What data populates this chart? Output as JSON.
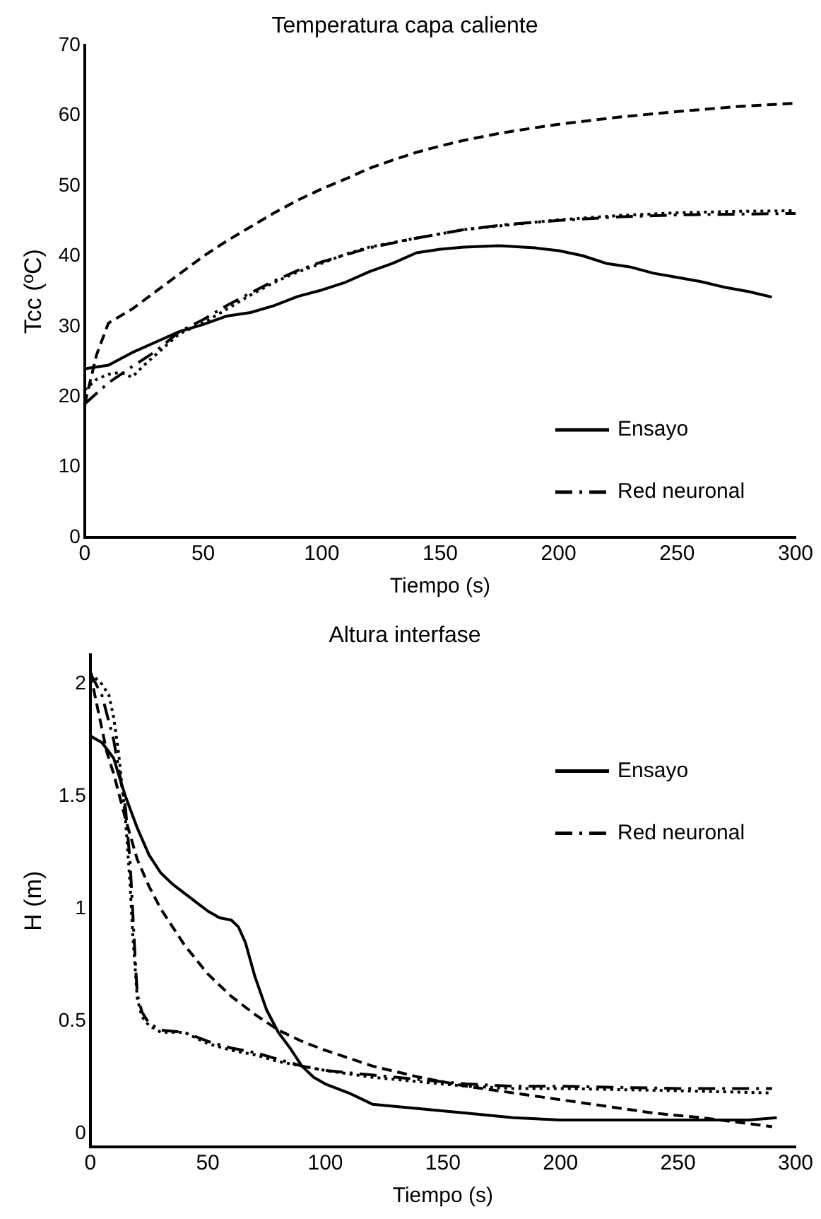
{
  "chart_data": [
    {
      "type": "line",
      "title": "Temperatura capa caliente",
      "xlabel": "Tiempo (s)",
      "ylabel": "Tcc (ºC)",
      "xlim": [
        0,
        300
      ],
      "xticks": [
        0,
        50,
        100,
        150,
        200,
        250,
        300
      ],
      "ylim": [
        0,
        70
      ],
      "yticks": [
        0,
        10,
        20,
        30,
        40,
        50,
        60,
        70
      ],
      "grid": false,
      "legend": "bottom right",
      "marker": "none",
      "series": [
        {
          "name": "Ensayo",
          "color": "#000000",
          "line_style": "solid",
          "x": [
            0,
            10,
            20,
            30,
            40,
            50,
            60,
            70,
            80,
            90,
            100,
            110,
            120,
            130,
            140,
            150,
            160,
            175,
            190,
            200,
            210,
            220,
            230,
            240,
            250,
            260,
            270,
            280,
            290
          ],
          "values": [
            24,
            24.5,
            26.3,
            27.8,
            29.3,
            30.3,
            31.5,
            32,
            33,
            34.3,
            35.2,
            36.3,
            37.8,
            39,
            40.5,
            41,
            41.3,
            41.5,
            41.2,
            40.8,
            40.1,
            39,
            38.5,
            37.6,
            37,
            36.4,
            35.6,
            35,
            34.2
          ]
        },
        {
          "color": "#000000",
          "line_style": "dashed",
          "x": [
            0,
            5,
            10,
            20,
            30,
            40,
            50,
            60,
            70,
            80,
            90,
            100,
            110,
            120,
            130,
            140,
            150,
            160,
            175,
            190,
            200,
            225,
            250,
            275,
            300
          ],
          "values": [
            19,
            26,
            30.5,
            32.5,
            35,
            37.5,
            40,
            42.2,
            44.2,
            46.2,
            48,
            49.6,
            51,
            52.5,
            53.7,
            54.8,
            55.7,
            56.5,
            57.5,
            58.3,
            58.8,
            59.8,
            60.6,
            61.3,
            61.8
          ]
        },
        {
          "color": "#000000",
          "line_style": "dotted",
          "x": [
            0,
            5,
            10,
            15,
            20,
            25,
            30,
            40,
            50,
            60,
            70,
            80,
            90,
            100,
            110,
            120,
            140,
            160,
            180,
            200,
            225,
            250,
            275,
            300
          ],
          "values": [
            21,
            22.5,
            23.2,
            23.5,
            22.8,
            24.5,
            26,
            29,
            30.5,
            32.5,
            34.5,
            36.3,
            37.8,
            39,
            40.3,
            41.3,
            42.6,
            43.8,
            44.5,
            45.2,
            45.8,
            46.2,
            46.4,
            46.5
          ]
        },
        {
          "name": "Red neuronal",
          "color": "#000000",
          "line_style": "dashdot",
          "x": [
            0,
            10,
            20,
            30,
            40,
            50,
            60,
            70,
            80,
            90,
            100,
            120,
            140,
            160,
            180,
            200,
            225,
            250,
            275,
            300
          ],
          "values": [
            19,
            22,
            24.3,
            26.5,
            29.3,
            31,
            33,
            34.8,
            36.5,
            38,
            39.2,
            41.2,
            42.6,
            43.8,
            44.6,
            45.1,
            45.6,
            45.9,
            46,
            46.1
          ]
        }
      ]
    },
    {
      "type": "line",
      "title": "Altura interfase",
      "xlabel": "Tiempo (s)",
      "ylabel": "H (m)",
      "xlim": [
        0,
        300
      ],
      "xticks": [
        0,
        50,
        100,
        150,
        200,
        250,
        300
      ],
      "ylim": [
        -0.06,
        2.13
      ],
      "yticks": [
        0,
        0.5,
        1,
        1.5,
        2
      ],
      "grid": false,
      "legend": "top right",
      "marker": "none",
      "series": [
        {
          "name": "Ensayo",
          "color": "#000000",
          "line_style": "solid",
          "x": [
            0,
            5,
            10,
            12,
            15,
            20,
            25,
            30,
            35,
            40,
            45,
            50,
            55,
            60,
            63,
            66,
            70,
            75,
            80,
            85,
            90,
            95,
            100,
            110,
            120,
            140,
            160,
            180,
            200,
            230,
            260,
            280,
            292
          ],
          "values": [
            1.77,
            1.74,
            1.67,
            1.6,
            1.5,
            1.36,
            1.24,
            1.16,
            1.11,
            1.07,
            1.03,
            0.99,
            0.96,
            0.95,
            0.92,
            0.85,
            0.7,
            0.55,
            0.45,
            0.38,
            0.3,
            0.25,
            0.22,
            0.18,
            0.13,
            0.11,
            0.09,
            0.07,
            0.06,
            0.06,
            0.06,
            0.06,
            0.07
          ]
        },
        {
          "color": "#000000",
          "line_style": "dashed",
          "x": [
            0,
            3,
            7,
            10,
            15,
            20,
            25,
            30,
            40,
            50,
            60,
            70,
            80,
            90,
            100,
            120,
            140,
            160,
            180,
            200,
            220,
            240,
            260,
            275,
            290
          ],
          "values": [
            2.05,
            1.9,
            1.7,
            1.6,
            1.4,
            1.22,
            1.1,
            1.0,
            0.84,
            0.71,
            0.61,
            0.53,
            0.46,
            0.41,
            0.37,
            0.3,
            0.25,
            0.21,
            0.18,
            0.15,
            0.12,
            0.09,
            0.07,
            0.05,
            0.03
          ]
        },
        {
          "color": "#000000",
          "line_style": "dotted",
          "x": [
            0,
            5,
            8,
            10,
            12,
            15,
            17,
            18,
            19,
            20,
            22,
            25,
            30,
            40,
            50,
            60,
            70,
            80,
            90,
            100,
            120,
            140,
            160,
            180,
            200,
            250,
            290
          ],
          "values": [
            2.05,
            2.0,
            1.95,
            1.85,
            1.7,
            1.4,
            1.1,
            0.9,
            0.75,
            0.6,
            0.52,
            0.48,
            0.45,
            0.45,
            0.4,
            0.37,
            0.35,
            0.32,
            0.3,
            0.28,
            0.25,
            0.23,
            0.21,
            0.2,
            0.2,
            0.19,
            0.18
          ]
        },
        {
          "name": "Red neuronal",
          "color": "#000000",
          "line_style": "dashdot",
          "x": [
            0,
            5,
            10,
            15,
            17,
            18,
            19,
            20,
            22,
            25,
            30,
            40,
            50,
            60,
            70,
            80,
            90,
            100,
            120,
            140,
            160,
            180,
            200,
            250,
            290
          ],
          "values": [
            2.05,
            1.95,
            1.75,
            1.45,
            1.2,
            1.0,
            0.8,
            0.62,
            0.54,
            0.49,
            0.46,
            0.45,
            0.41,
            0.38,
            0.36,
            0.33,
            0.3,
            0.28,
            0.26,
            0.24,
            0.22,
            0.21,
            0.21,
            0.2,
            0.2
          ]
        }
      ]
    }
  ]
}
